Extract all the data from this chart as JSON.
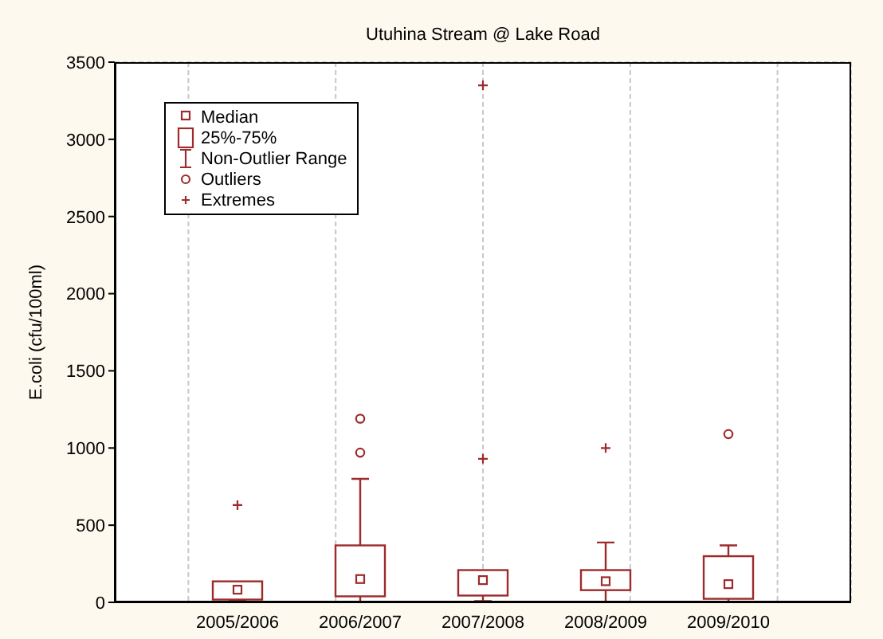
{
  "chart_data": {
    "type": "box",
    "title": "Utuhina Stream @ Lake Road",
    "ylabel": "E.coli (cfu/100ml)",
    "categories": [
      "2005/2006",
      "2006/2007",
      "2007/2008",
      "2008/2009",
      "2009/2010"
    ],
    "ylim": [
      0,
      3500
    ],
    "yticks": [
      0,
      500,
      1000,
      1500,
      2000,
      2500,
      3000,
      3500
    ],
    "grid": true,
    "legend": "top left",
    "annotations": [
      "Median",
      "25%-75%",
      "Non-Outlier Range"
    ],
    "series": [
      {
        "type": "box",
        "color": "#9e2a2a",
        "marker": "square",
        "boxes": [
          {
            "low": 12,
            "q1": 18,
            "median": 82,
            "q3": 136,
            "high": 136
          },
          {
            "low": 4,
            "q1": 39,
            "median": 151,
            "q3": 369,
            "high": 800
          },
          {
            "low": 8,
            "q1": 44,
            "median": 144,
            "q3": 209,
            "high": 209
          },
          {
            "low": 4,
            "q1": 79,
            "median": 137,
            "q3": 209,
            "high": 388
          },
          {
            "low": 0,
            "q1": 23,
            "median": 118,
            "q3": 299,
            "high": 369
          }
        ]
      },
      {
        "type": "scatter",
        "name": "Outliers",
        "color": "#9e2a2a",
        "marker": "circle",
        "x": [
          "2006/2007",
          "2006/2007",
          "2009/2010"
        ],
        "values": [
          1190,
          970,
          1090
        ]
      },
      {
        "type": "scatter",
        "name": "Extremes",
        "color": "#9e2a2a",
        "marker": "cross",
        "x": [
          "2005/2006",
          "2007/2008",
          "2007/2008",
          "2008/2009"
        ],
        "values": [
          630,
          3350,
          930,
          1000
        ]
      }
    ]
  }
}
